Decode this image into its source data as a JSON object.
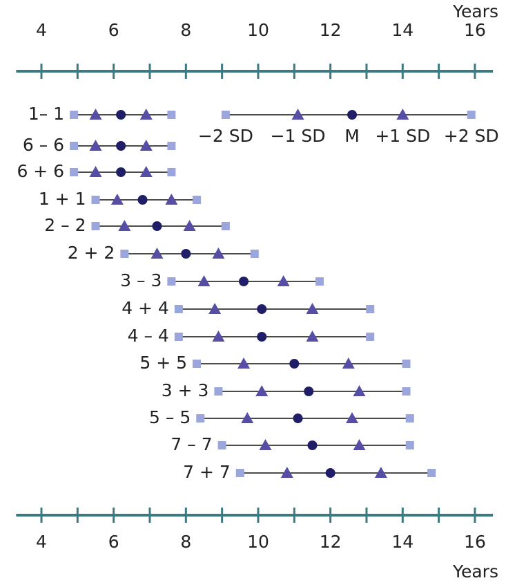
{
  "chart_data": {
    "type": "range-dot",
    "x_label": "Years",
    "xlim": [
      3.3,
      16.5
    ],
    "xticks": [
      4,
      6,
      8,
      10,
      12,
      14,
      16
    ],
    "minor_xticks": [
      5,
      7,
      9,
      11,
      13,
      15
    ],
    "categories": [
      "1– 1",
      "6 – 6",
      "6 + 6",
      "1 + 1",
      "2 – 2",
      "2 + 2",
      "3 – 3",
      "4 + 4",
      "4 – 4",
      "5 + 5",
      "3 + 3",
      "5 – 5",
      "7 – 7",
      "7 + 7"
    ],
    "series": [
      {
        "name": "−2 SD",
        "color": "#9aa6dc",
        "marker": "square",
        "values": [
          4.9,
          4.9,
          4.9,
          5.5,
          5.5,
          6.3,
          7.6,
          7.8,
          7.8,
          8.3,
          8.9,
          8.4,
          9.0,
          9.5
        ]
      },
      {
        "name": "−1 SD",
        "color": "#564ea4",
        "marker": "triangle",
        "values": [
          5.5,
          5.5,
          5.5,
          6.1,
          6.3,
          7.2,
          8.5,
          8.8,
          8.9,
          9.6,
          10.1,
          9.7,
          10.2,
          10.8
        ]
      },
      {
        "name": "M",
        "color": "#1f1e66",
        "marker": "circle",
        "values": [
          6.2,
          6.2,
          6.2,
          6.8,
          7.2,
          8.0,
          9.6,
          10.1,
          10.1,
          11.0,
          11.4,
          11.1,
          11.5,
          12.0
        ]
      },
      {
        "name": "+1 SD",
        "color": "#564ea4",
        "marker": "triangle",
        "values": [
          6.9,
          6.9,
          6.9,
          7.6,
          8.1,
          8.9,
          10.7,
          11.5,
          11.5,
          12.5,
          12.8,
          12.6,
          12.8,
          13.4
        ]
      },
      {
        "name": "+2 SD",
        "color": "#9aa6dc",
        "marker": "square",
        "values": [
          7.6,
          7.6,
          7.6,
          8.3,
          9.1,
          9.9,
          11.7,
          13.1,
          13.1,
          14.1,
          14.1,
          14.2,
          14.2,
          14.8
        ]
      }
    ],
    "key_values": [
      9.1,
      11.1,
      12.6,
      14.0,
      15.9
    ],
    "axis_color": "#3a7a80"
  }
}
